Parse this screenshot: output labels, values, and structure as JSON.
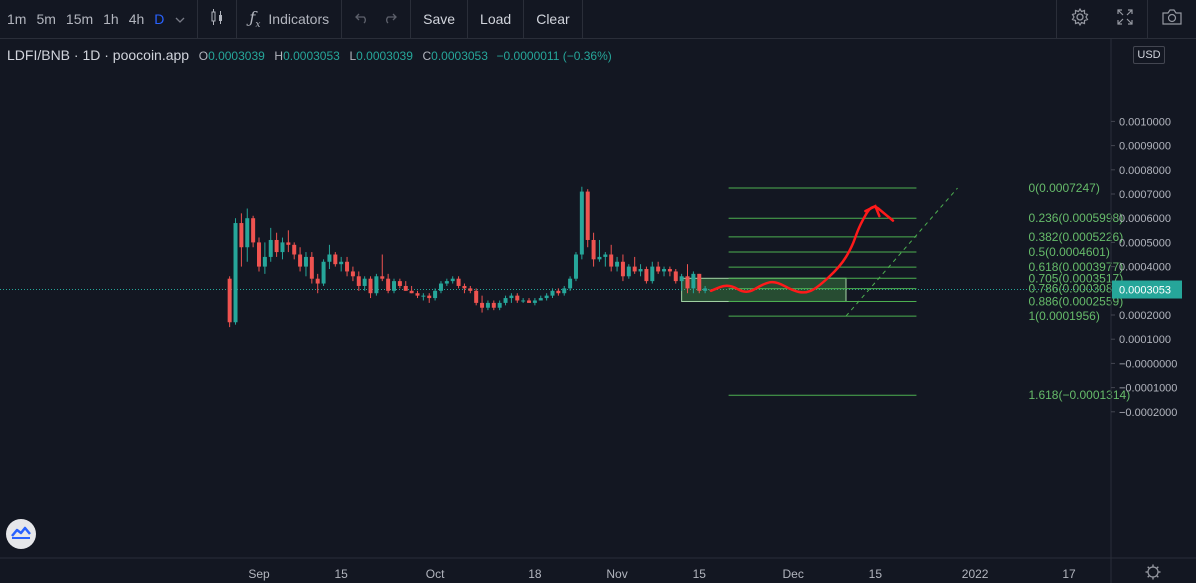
{
  "toolbar": {
    "timeframes": [
      "1m",
      "5m",
      "15m",
      "1h",
      "4h",
      "D"
    ],
    "active_timeframe": "D",
    "indicators_label": "Indicators",
    "save_label": "Save",
    "load_label": "Load",
    "clear_label": "Clear",
    "icons": [
      "chevron-down-icon",
      "candles-icon",
      "fx-icon",
      "undo-icon",
      "redo-icon",
      "gear-icon",
      "fullscreen-icon",
      "camera-icon"
    ]
  },
  "legend": {
    "symbol": "LDFI/BNB · 1D · poocoin.app",
    "open_label": "O",
    "open": "0.0003039",
    "high_label": "H",
    "high": "0.0003053",
    "low_label": "L",
    "low": "0.0003039",
    "close_label": "C",
    "close": "0.0003053",
    "change": "−0.0000011 (−0.36%)"
  },
  "currency": "USD",
  "colors": {
    "up": "#26a69a",
    "down": "#ef5350",
    "fib": "#4caf50",
    "background": "#131722",
    "price_tag": "#26a69a",
    "drawing": "#ff1a1a"
  },
  "chart_data": {
    "type": "candlestick",
    "ylim": [
      -0.0002,
      0.00108
    ],
    "y_tick_labels": [
      "0.0010000",
      "0.0009000",
      "0.0008000",
      "0.0007000",
      "0.0006000",
      "0.0005000",
      "0.0004000",
      "0.0003000",
      "0.0002000",
      "0.0001000",
      "−0.0000000",
      "−0.0001000",
      "−0.0002000"
    ],
    "y_ticks": [
      0.001,
      0.0009,
      0.0008,
      0.0007,
      0.0006,
      0.0005,
      0.0004,
      0.0003,
      0.0002,
      0.0001,
      0,
      -0.0001,
      -0.0002
    ],
    "x_tick_labels": [
      "Sep",
      "15",
      "Oct",
      "18",
      "Nov",
      "15",
      "Dec",
      "15",
      "2022",
      "17"
    ],
    "x_ticks": [
      "2021-09-01",
      "2021-09-15",
      "2021-10-01",
      "2021-10-18",
      "2021-11-01",
      "2021-11-15",
      "2021-12-01",
      "2021-12-15",
      "2022-01-01",
      "2022-01-17"
    ],
    "last_price": 0.0003053,
    "last_price_label": "0.0003053",
    "candles": [
      {
        "date": "2021-08-27",
        "open": 0.00035,
        "high": 0.00036,
        "low": 0.00015,
        "close": 0.00017
      },
      {
        "date": "2021-08-28",
        "open": 0.00017,
        "high": 0.0006,
        "low": 0.00016,
        "close": 0.00058
      },
      {
        "date": "2021-08-29",
        "open": 0.00058,
        "high": 0.00062,
        "low": 0.0004,
        "close": 0.00048
      },
      {
        "date": "2021-08-30",
        "open": 0.00048,
        "high": 0.00064,
        "low": 0.00042,
        "close": 0.0006
      },
      {
        "date": "2021-08-31",
        "open": 0.0006,
        "high": 0.00061,
        "low": 0.00048,
        "close": 0.0005
      },
      {
        "date": "2021-09-01",
        "open": 0.0005,
        "high": 0.00052,
        "low": 0.00038,
        "close": 0.0004
      },
      {
        "date": "2021-09-02",
        "open": 0.0004,
        "high": 0.0005,
        "low": 0.00037,
        "close": 0.00044
      },
      {
        "date": "2021-09-03",
        "open": 0.00044,
        "high": 0.00056,
        "low": 0.00042,
        "close": 0.00051
      },
      {
        "date": "2021-09-04",
        "open": 0.00051,
        "high": 0.00054,
        "low": 0.00044,
        "close": 0.00046
      },
      {
        "date": "2021-09-05",
        "open": 0.00046,
        "high": 0.00052,
        "low": 0.00043,
        "close": 0.0005
      },
      {
        "date": "2021-09-06",
        "open": 0.0005,
        "high": 0.00055,
        "low": 0.00046,
        "close": 0.00049
      },
      {
        "date": "2021-09-07",
        "open": 0.00049,
        "high": 0.0005,
        "low": 0.00043,
        "close": 0.00045
      },
      {
        "date": "2021-09-08",
        "open": 0.00045,
        "high": 0.00048,
        "low": 0.00038,
        "close": 0.0004
      },
      {
        "date": "2021-09-09",
        "open": 0.0004,
        "high": 0.00046,
        "low": 0.00036,
        "close": 0.00044
      },
      {
        "date": "2021-09-10",
        "open": 0.00044,
        "high": 0.00046,
        "low": 0.00033,
        "close": 0.00035
      },
      {
        "date": "2021-09-11",
        "open": 0.00035,
        "high": 0.00037,
        "low": 0.00029,
        "close": 0.00033
      },
      {
        "date": "2021-09-12",
        "open": 0.00033,
        "high": 0.00043,
        "low": 0.00032,
        "close": 0.00042
      },
      {
        "date": "2021-09-13",
        "open": 0.00042,
        "high": 0.00049,
        "low": 0.00039,
        "close": 0.00045
      },
      {
        "date": "2021-09-14",
        "open": 0.00045,
        "high": 0.00046,
        "low": 0.0004,
        "close": 0.00041
      },
      {
        "date": "2021-09-15",
        "open": 0.00041,
        "high": 0.00044,
        "low": 0.00038,
        "close": 0.00042
      },
      {
        "date": "2021-09-16",
        "open": 0.00042,
        "high": 0.00044,
        "low": 0.00036,
        "close": 0.00038
      },
      {
        "date": "2021-09-17",
        "open": 0.00038,
        "high": 0.0004,
        "low": 0.00034,
        "close": 0.00036
      },
      {
        "date": "2021-09-18",
        "open": 0.00036,
        "high": 0.00038,
        "low": 0.0003,
        "close": 0.00032
      },
      {
        "date": "2021-09-19",
        "open": 0.00032,
        "high": 0.00036,
        "low": 0.0003,
        "close": 0.00035
      },
      {
        "date": "2021-09-20",
        "open": 0.00035,
        "high": 0.00036,
        "low": 0.00027,
        "close": 0.00029
      },
      {
        "date": "2021-09-21",
        "open": 0.00029,
        "high": 0.00037,
        "low": 0.00028,
        "close": 0.00036
      },
      {
        "date": "2021-09-22",
        "open": 0.00036,
        "high": 0.00045,
        "low": 0.00034,
        "close": 0.00035
      },
      {
        "date": "2021-09-23",
        "open": 0.00035,
        "high": 0.00037,
        "low": 0.00029,
        "close": 0.0003
      },
      {
        "date": "2021-09-24",
        "open": 0.0003,
        "high": 0.00035,
        "low": 0.00029,
        "close": 0.00034
      },
      {
        "date": "2021-09-25",
        "open": 0.00034,
        "high": 0.00035,
        "low": 0.00031,
        "close": 0.00032
      },
      {
        "date": "2021-09-26",
        "open": 0.00032,
        "high": 0.00034,
        "low": 0.0003,
        "close": 0.0003
      },
      {
        "date": "2021-09-27",
        "open": 0.0003,
        "high": 0.00032,
        "low": 0.00029,
        "close": 0.00029
      },
      {
        "date": "2021-09-28",
        "open": 0.00029,
        "high": 0.0003,
        "low": 0.00027,
        "close": 0.00028
      },
      {
        "date": "2021-09-29",
        "open": 0.00028,
        "high": 0.00029,
        "low": 0.00026,
        "close": 0.00028
      },
      {
        "date": "2021-09-30",
        "open": 0.00028,
        "high": 0.00029,
        "low": 0.00025,
        "close": 0.00027
      },
      {
        "date": "2021-10-01",
        "open": 0.00027,
        "high": 0.00031,
        "low": 0.00026,
        "close": 0.0003
      },
      {
        "date": "2021-10-02",
        "open": 0.0003,
        "high": 0.00034,
        "low": 0.00029,
        "close": 0.00033
      },
      {
        "date": "2021-10-03",
        "open": 0.00033,
        "high": 0.00035,
        "low": 0.00032,
        "close": 0.00034
      },
      {
        "date": "2021-10-04",
        "open": 0.00034,
        "high": 0.00036,
        "low": 0.00033,
        "close": 0.00035
      },
      {
        "date": "2021-10-05",
        "open": 0.00035,
        "high": 0.00036,
        "low": 0.00031,
        "close": 0.00032
      },
      {
        "date": "2021-10-06",
        "open": 0.00032,
        "high": 0.00033,
        "low": 0.00029,
        "close": 0.00031
      },
      {
        "date": "2021-10-07",
        "open": 0.00031,
        "high": 0.00032,
        "low": 0.00029,
        "close": 0.0003
      },
      {
        "date": "2021-10-08",
        "open": 0.0003,
        "high": 0.00031,
        "low": 0.00024,
        "close": 0.00025
      },
      {
        "date": "2021-10-09",
        "open": 0.00025,
        "high": 0.00028,
        "low": 0.00021,
        "close": 0.00023
      },
      {
        "date": "2021-10-10",
        "open": 0.00023,
        "high": 0.00026,
        "low": 0.00022,
        "close": 0.00025
      },
      {
        "date": "2021-10-11",
        "open": 0.00025,
        "high": 0.00026,
        "low": 0.00022,
        "close": 0.00023
      },
      {
        "date": "2021-10-12",
        "open": 0.00023,
        "high": 0.00026,
        "low": 0.00022,
        "close": 0.00025
      },
      {
        "date": "2021-10-13",
        "open": 0.00025,
        "high": 0.00028,
        "low": 0.00024,
        "close": 0.00027
      },
      {
        "date": "2021-10-14",
        "open": 0.00027,
        "high": 0.00029,
        "low": 0.00025,
        "close": 0.00028
      },
      {
        "date": "2021-10-15",
        "open": 0.00028,
        "high": 0.00029,
        "low": 0.00025,
        "close": 0.00026
      },
      {
        "date": "2021-10-16",
        "open": 0.00026,
        "high": 0.00027,
        "low": 0.00025,
        "close": 0.00026
      },
      {
        "date": "2021-10-17",
        "open": 0.00026,
        "high": 0.00027,
        "low": 0.00025,
        "close": 0.00025
      },
      {
        "date": "2021-10-18",
        "open": 0.00025,
        "high": 0.00027,
        "low": 0.00024,
        "close": 0.00026
      },
      {
        "date": "2021-10-19",
        "open": 0.00026,
        "high": 0.00028,
        "low": 0.00026,
        "close": 0.00027
      },
      {
        "date": "2021-10-20",
        "open": 0.00027,
        "high": 0.00029,
        "low": 0.00026,
        "close": 0.00028
      },
      {
        "date": "2021-10-21",
        "open": 0.00028,
        "high": 0.00031,
        "low": 0.00027,
        "close": 0.0003
      },
      {
        "date": "2021-10-22",
        "open": 0.0003,
        "high": 0.00031,
        "low": 0.00028,
        "close": 0.00029
      },
      {
        "date": "2021-10-23",
        "open": 0.00029,
        "high": 0.00032,
        "low": 0.00028,
        "close": 0.00031
      },
      {
        "date": "2021-10-24",
        "open": 0.00031,
        "high": 0.00036,
        "low": 0.0003,
        "close": 0.00035
      },
      {
        "date": "2021-10-25",
        "open": 0.00035,
        "high": 0.00046,
        "low": 0.00034,
        "close": 0.00045
      },
      {
        "date": "2021-10-26",
        "open": 0.00045,
        "high": 0.00073,
        "low": 0.00043,
        "close": 0.00071
      },
      {
        "date": "2021-10-27",
        "open": 0.00071,
        "high": 0.00072,
        "low": 0.00048,
        "close": 0.00051
      },
      {
        "date": "2021-10-28",
        "open": 0.00051,
        "high": 0.00054,
        "low": 0.0004,
        "close": 0.00043
      },
      {
        "date": "2021-10-29",
        "open": 0.00043,
        "high": 0.00051,
        "low": 0.00042,
        "close": 0.00044
      },
      {
        "date": "2021-10-30",
        "open": 0.00044,
        "high": 0.00046,
        "low": 0.0004,
        "close": 0.00045
      },
      {
        "date": "2021-10-31",
        "open": 0.00045,
        "high": 0.00049,
        "low": 0.00038,
        "close": 0.0004
      },
      {
        "date": "2021-11-01",
        "open": 0.0004,
        "high": 0.00044,
        "low": 0.00038,
        "close": 0.00042
      },
      {
        "date": "2021-11-02",
        "open": 0.00042,
        "high": 0.00045,
        "low": 0.00034,
        "close": 0.00036
      },
      {
        "date": "2021-11-03",
        "open": 0.00036,
        "high": 0.00041,
        "low": 0.00035,
        "close": 0.0004
      },
      {
        "date": "2021-11-04",
        "open": 0.0004,
        "high": 0.00044,
        "low": 0.00037,
        "close": 0.00038
      },
      {
        "date": "2021-11-05",
        "open": 0.00038,
        "high": 0.00041,
        "low": 0.00036,
        "close": 0.00039
      },
      {
        "date": "2021-11-06",
        "open": 0.00039,
        "high": 0.0004,
        "low": 0.00033,
        "close": 0.00034
      },
      {
        "date": "2021-11-07",
        "open": 0.00034,
        "high": 0.00042,
        "low": 0.00033,
        "close": 0.0004
      },
      {
        "date": "2021-11-08",
        "open": 0.0004,
        "high": 0.00042,
        "low": 0.00037,
        "close": 0.00038
      },
      {
        "date": "2021-11-09",
        "open": 0.00038,
        "high": 0.0004,
        "low": 0.00036,
        "close": 0.00039
      },
      {
        "date": "2021-11-10",
        "open": 0.00039,
        "high": 0.0004,
        "low": 0.00036,
        "close": 0.00038
      },
      {
        "date": "2021-11-11",
        "open": 0.00038,
        "high": 0.00039,
        "low": 0.00033,
        "close": 0.00034
      },
      {
        "date": "2021-11-12",
        "open": 0.00034,
        "high": 0.00037,
        "low": 0.0003,
        "close": 0.00036
      },
      {
        "date": "2021-11-13",
        "open": 0.00036,
        "high": 0.00041,
        "low": 0.00029,
        "close": 0.00031
      },
      {
        "date": "2021-11-14",
        "open": 0.00031,
        "high": 0.00038,
        "low": 0.00029,
        "close": 0.00037
      },
      {
        "date": "2021-11-15",
        "open": 0.00037,
        "high": 0.00037,
        "low": 0.00029,
        "close": 0.0003
      },
      {
        "date": "2021-11-16",
        "open": 0.0003,
        "high": 0.00032,
        "low": 0.00029,
        "close": 0.00031
      },
      {
        "date": "2021-11-17",
        "open": 0.0003039,
        "high": 0.0003053,
        "low": 0.0003039,
        "close": 0.0003053
      }
    ],
    "fibonacci": {
      "start_date": "2021-11-20",
      "end_date": "2021-12-22",
      "levels": [
        {
          "ratio_label": "0",
          "value": 0.0007247,
          "text": "0(0.0007247)"
        },
        {
          "ratio_label": "0.236",
          "value": 0.0005998,
          "text": "0.236(0.0005998)"
        },
        {
          "ratio_label": "0.382",
          "value": 0.0005226,
          "text": "0.382(0.0005226)"
        },
        {
          "ratio_label": "0.5",
          "value": 0.0004601,
          "text": "0.5(0.0004601)"
        },
        {
          "ratio_label": "0.618",
          "value": 0.0003977,
          "text": "0.618(0.0003977)"
        },
        {
          "ratio_label": "0.705",
          "value": 0.0003517,
          "text": "0.705(0.0003517)"
        },
        {
          "ratio_label": "0.786",
          "value": 0.0003088,
          "text": "0.786(0.0003088)"
        },
        {
          "ratio_label": "0.886",
          "value": 0.0002559,
          "text": "0.886(0.0002559)"
        },
        {
          "ratio_label": "1",
          "value": 0.0001956,
          "text": "1(0.0001956)"
        },
        {
          "ratio_label": "1.618",
          "value": -0.0001314,
          "text": "1.618(−0.0001314)"
        }
      ],
      "zone": {
        "start_date": "2021-11-12",
        "end_date": "2021-12-10",
        "top": 0.0003517,
        "bottom": 0.0002559
      },
      "trend_line": {
        "from_date": "2021-12-10",
        "from_value": 0.0001956,
        "to_date": "2021-12-29",
        "to_value": 0.0007247
      }
    },
    "drawing": {
      "type": "freehand-projection",
      "points": [
        {
          "date": "2021-11-17",
          "value": 0.0003
        },
        {
          "date": "2021-11-20",
          "value": 0.00033
        },
        {
          "date": "2021-11-23",
          "value": 0.000285
        },
        {
          "date": "2021-11-26",
          "value": 0.00033
        },
        {
          "date": "2021-11-28",
          "value": 0.00034
        },
        {
          "date": "2021-12-01",
          "value": 0.0003
        },
        {
          "date": "2021-12-03",
          "value": 0.00029
        },
        {
          "date": "2021-12-05",
          "value": 0.00031
        },
        {
          "date": "2021-12-09",
          "value": 0.0004
        },
        {
          "date": "2021-12-11",
          "value": 0.00048
        },
        {
          "date": "2021-12-12",
          "value": 0.00055
        },
        {
          "date": "2021-12-13",
          "value": 0.0006
        },
        {
          "date": "2021-12-14",
          "value": 0.00064
        },
        {
          "date": "2021-12-15",
          "value": 0.00065
        },
        {
          "date": "2021-12-16",
          "value": 0.00063
        },
        {
          "date": "2021-12-18",
          "value": 0.00059
        }
      ]
    }
  }
}
